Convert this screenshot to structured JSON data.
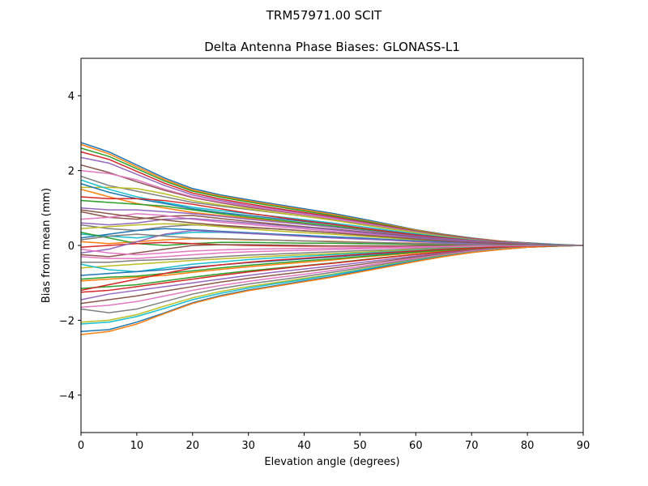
{
  "chart_data": {
    "type": "line",
    "suptitle": "TRM57971.00     SCIT",
    "title": "Delta Antenna Phase Biases: GLONASS-L1",
    "xlabel": "Elevation angle (degrees)",
    "ylabel": "Bias from mean (mm)",
    "xlim": [
      0,
      90
    ],
    "ylim": [
      -5,
      5
    ],
    "xticks": [
      0,
      10,
      20,
      30,
      40,
      50,
      60,
      70,
      80,
      90
    ],
    "yticks": [
      -4,
      -2,
      0,
      2,
      4
    ],
    "ytick_labels": [
      "−4",
      "−2",
      "0",
      "2",
      "4"
    ],
    "grid": false,
    "x": [
      0,
      5,
      10,
      15,
      20,
      25,
      30,
      35,
      40,
      45,
      50,
      55,
      60,
      65,
      70,
      75,
      80,
      85,
      90
    ],
    "palette": [
      "#1f77b4",
      "#ff7f0e",
      "#2ca02c",
      "#d62728",
      "#9467bd",
      "#8c564b",
      "#e377c2",
      "#7f7f7f",
      "#bcbd22",
      "#17becf"
    ],
    "series": [
      {
        "values": [
          2.75,
          2.5,
          2.15,
          1.8,
          1.52,
          1.35,
          1.22,
          1.1,
          0.98,
          0.86,
          0.72,
          0.57,
          0.42,
          0.3,
          0.2,
          0.12,
          0.07,
          0.03,
          0.0
        ]
      },
      {
        "values": [
          2.7,
          2.45,
          2.1,
          1.76,
          1.48,
          1.32,
          1.19,
          1.07,
          0.95,
          0.83,
          0.69,
          0.55,
          0.41,
          0.29,
          0.19,
          0.12,
          0.06,
          0.02,
          0.0
        ]
      },
      {
        "values": [
          2.6,
          2.38,
          2.05,
          1.72,
          1.45,
          1.29,
          1.16,
          1.04,
          0.92,
          0.8,
          0.67,
          0.53,
          0.39,
          0.28,
          0.18,
          0.11,
          0.06,
          0.02,
          0.0
        ]
      },
      {
        "values": [
          2.5,
          2.3,
          1.98,
          1.66,
          1.4,
          1.24,
          1.11,
          0.99,
          0.88,
          0.77,
          0.64,
          0.51,
          0.38,
          0.27,
          0.18,
          0.11,
          0.06,
          0.02,
          0.0
        ]
      },
      {
        "values": [
          2.35,
          2.2,
          1.9,
          1.6,
          1.35,
          1.2,
          1.07,
          0.96,
          0.85,
          0.74,
          0.62,
          0.49,
          0.37,
          0.26,
          0.17,
          0.1,
          0.05,
          0.02,
          0.0
        ]
      },
      {
        "values": [
          2.15,
          1.95,
          1.7,
          1.47,
          1.28,
          1.14,
          1.02,
          0.92,
          0.82,
          0.71,
          0.6,
          0.48,
          0.36,
          0.25,
          0.16,
          0.1,
          0.05,
          0.02,
          0.0
        ]
      },
      {
        "values": [
          2.0,
          1.92,
          1.75,
          1.5,
          1.3,
          1.16,
          1.05,
          0.94,
          0.83,
          0.72,
          0.6,
          0.48,
          0.36,
          0.25,
          0.16,
          0.1,
          0.05,
          0.02,
          0.0
        ]
      },
      {
        "values": [
          1.85,
          1.6,
          1.45,
          1.3,
          1.15,
          1.05,
          0.96,
          0.87,
          0.78,
          0.68,
          0.57,
          0.46,
          0.35,
          0.25,
          0.16,
          0.1,
          0.05,
          0.02,
          0.0
        ]
      },
      {
        "values": [
          1.55,
          1.55,
          1.52,
          1.38,
          1.2,
          1.08,
          0.98,
          0.88,
          0.78,
          0.68,
          0.56,
          0.45,
          0.34,
          0.24,
          0.15,
          0.09,
          0.05,
          0.02,
          0.0
        ]
      },
      {
        "values": [
          1.75,
          1.5,
          1.3,
          1.15,
          1.02,
          0.93,
          0.85,
          0.77,
          0.69,
          0.6,
          0.51,
          0.41,
          0.31,
          0.22,
          0.14,
          0.09,
          0.05,
          0.02,
          0.0
        ]
      },
      {
        "values": [
          1.65,
          1.42,
          1.25,
          1.12,
          0.98,
          0.88,
          0.8,
          0.72,
          0.64,
          0.56,
          0.47,
          0.38,
          0.29,
          0.21,
          0.13,
          0.08,
          0.04,
          0.02,
          0.0
        ]
      },
      {
        "values": [
          1.5,
          1.3,
          1.12,
          1.0,
          0.88,
          0.8,
          0.73,
          0.66,
          0.59,
          0.52,
          0.44,
          0.36,
          0.27,
          0.19,
          0.12,
          0.07,
          0.04,
          0.01,
          0.0
        ]
      },
      {
        "values": [
          1.2,
          1.15,
          1.1,
          1.05,
          0.95,
          0.85,
          0.76,
          0.68,
          0.6,
          0.52,
          0.44,
          0.35,
          0.27,
          0.19,
          0.12,
          0.07,
          0.04,
          0.01,
          0.0
        ]
      },
      {
        "values": [
          1.3,
          1.25,
          1.25,
          1.2,
          1.1,
          0.98,
          0.86,
          0.76,
          0.66,
          0.57,
          0.47,
          0.37,
          0.28,
          0.2,
          0.13,
          0.08,
          0.04,
          0.01,
          0.0
        ]
      },
      {
        "values": [
          1.0,
          0.95,
          0.95,
          0.9,
          0.85,
          0.78,
          0.7,
          0.63,
          0.56,
          0.49,
          0.41,
          0.33,
          0.25,
          0.18,
          0.12,
          0.07,
          0.04,
          0.01,
          0.0
        ]
      },
      {
        "values": [
          0.9,
          0.75,
          0.7,
          0.78,
          0.8,
          0.72,
          0.64,
          0.57,
          0.5,
          0.44,
          0.37,
          0.3,
          0.23,
          0.16,
          0.1,
          0.06,
          0.03,
          0.01,
          0.0
        ]
      },
      {
        "values": [
          0.7,
          0.75,
          0.85,
          0.8,
          0.7,
          0.62,
          0.56,
          0.5,
          0.44,
          0.38,
          0.32,
          0.26,
          0.2,
          0.14,
          0.09,
          0.05,
          0.03,
          0.01,
          0.0
        ]
      },
      {
        "values": [
          0.55,
          0.45,
          0.4,
          0.5,
          0.55,
          0.52,
          0.48,
          0.44,
          0.39,
          0.34,
          0.29,
          0.23,
          0.18,
          0.13,
          0.08,
          0.05,
          0.03,
          0.01,
          0.0
        ]
      },
      {
        "values": [
          0.45,
          0.5,
          0.55,
          0.58,
          0.56,
          0.5,
          0.44,
          0.39,
          0.34,
          0.3,
          0.25,
          0.2,
          0.15,
          0.11,
          0.07,
          0.04,
          0.02,
          0.01,
          0.0
        ]
      },
      {
        "values": [
          0.3,
          0.25,
          0.2,
          0.28,
          0.35,
          0.35,
          0.32,
          0.29,
          0.26,
          0.23,
          0.19,
          0.16,
          0.12,
          0.09,
          0.06,
          0.03,
          0.02,
          0.01,
          0.0
        ]
      },
      {
        "values": [
          0.2,
          0.3,
          0.4,
          0.45,
          0.42,
          0.38,
          0.34,
          0.3,
          0.27,
          0.23,
          0.2,
          0.16,
          0.12,
          0.09,
          0.06,
          0.03,
          0.02,
          0.01,
          0.0
        ]
      },
      {
        "values": [
          0.1,
          0.05,
          0.1,
          0.15,
          0.18,
          0.17,
          0.15,
          0.14,
          0.12,
          0.11,
          0.09,
          0.07,
          0.06,
          0.04,
          0.03,
          0.02,
          0.01,
          0.0,
          0.0
        ]
      },
      {
        "values": [
          0.35,
          0.2,
          0.05,
          0.0,
          0.05,
          0.08,
          0.08,
          0.07,
          0.06,
          0.06,
          0.05,
          0.04,
          0.03,
          0.02,
          0.01,
          0.01,
          0.0,
          0.0,
          0.0
        ]
      },
      {
        "values": [
          -0.05,
          0.0,
          0.05,
          0.08,
          0.05,
          0.02,
          0.0,
          -0.01,
          -0.02,
          -0.02,
          -0.02,
          -0.02,
          -0.01,
          -0.01,
          -0.01,
          0.0,
          0.0,
          0.0,
          0.0
        ]
      },
      {
        "values": [
          -0.2,
          -0.1,
          0.1,
          0.3,
          0.4,
          0.36,
          0.32,
          0.28,
          0.24,
          0.2,
          0.17,
          0.14,
          0.1,
          0.07,
          0.05,
          0.03,
          0.01,
          0.0,
          0.0
        ]
      },
      {
        "values": [
          -0.25,
          -0.3,
          -0.2,
          -0.1,
          0.0,
          0.02,
          0.02,
          0.01,
          0.0,
          -0.01,
          -0.01,
          -0.01,
          -0.01,
          -0.01,
          0.0,
          0.0,
          0.0,
          0.0,
          0.0
        ]
      },
      {
        "values": [
          -0.3,
          -0.35,
          -0.35,
          -0.3,
          -0.25,
          -0.2,
          -0.17,
          -0.15,
          -0.13,
          -0.11,
          -0.09,
          -0.07,
          -0.06,
          -0.04,
          -0.03,
          -0.02,
          -0.01,
          0.0,
          0.0
        ]
      },
      {
        "values": [
          -0.45,
          -0.45,
          -0.4,
          -0.38,
          -0.35,
          -0.3,
          -0.26,
          -0.23,
          -0.2,
          -0.17,
          -0.14,
          -0.12,
          -0.09,
          -0.06,
          -0.04,
          -0.02,
          -0.01,
          0.0,
          0.0
        ]
      },
      {
        "values": [
          -0.6,
          -0.55,
          -0.5,
          -0.45,
          -0.4,
          -0.36,
          -0.32,
          -0.28,
          -0.25,
          -0.22,
          -0.18,
          -0.15,
          -0.11,
          -0.08,
          -0.05,
          -0.03,
          -0.02,
          -0.01,
          0.0
        ]
      },
      {
        "values": [
          -0.5,
          -0.65,
          -0.7,
          -0.6,
          -0.5,
          -0.44,
          -0.38,
          -0.33,
          -0.29,
          -0.25,
          -0.21,
          -0.17,
          -0.13,
          -0.09,
          -0.06,
          -0.04,
          -0.02,
          -0.01,
          0.0
        ]
      },
      {
        "values": [
          -0.8,
          -0.75,
          -0.7,
          -0.65,
          -0.58,
          -0.52,
          -0.46,
          -0.41,
          -0.36,
          -0.31,
          -0.26,
          -0.21,
          -0.16,
          -0.11,
          -0.07,
          -0.04,
          -0.02,
          -0.01,
          0.0
        ]
      },
      {
        "values": [
          -0.95,
          -0.9,
          -0.85,
          -0.8,
          -0.72,
          -0.64,
          -0.57,
          -0.51,
          -0.45,
          -0.39,
          -0.32,
          -0.26,
          -0.2,
          -0.14,
          -0.09,
          -0.05,
          -0.03,
          -0.01,
          0.0
        ]
      },
      {
        "values": [
          -1.15,
          -1.1,
          -1.05,
          -0.95,
          -0.85,
          -0.76,
          -0.68,
          -0.61,
          -0.54,
          -0.47,
          -0.39,
          -0.31,
          -0.24,
          -0.17,
          -0.11,
          -0.06,
          -0.03,
          -0.01,
          0.0
        ]
      },
      {
        "values": [
          -1.25,
          -1.2,
          -1.1,
          -1.0,
          -0.9,
          -0.8,
          -0.71,
          -0.63,
          -0.55,
          -0.48,
          -0.4,
          -0.32,
          -0.24,
          -0.17,
          -0.11,
          -0.06,
          -0.03,
          -0.01,
          0.0
        ]
      },
      {
        "values": [
          -1.45,
          -1.3,
          -1.2,
          -1.1,
          -1.0,
          -0.9,
          -0.8,
          -0.71,
          -0.63,
          -0.55,
          -0.46,
          -0.37,
          -0.28,
          -0.2,
          -0.13,
          -0.07,
          -0.04,
          -0.01,
          0.0
        ]
      },
      {
        "values": [
          -1.55,
          -1.45,
          -1.35,
          -1.22,
          -1.1,
          -0.98,
          -0.88,
          -0.79,
          -0.7,
          -0.61,
          -0.51,
          -0.41,
          -0.31,
          -0.22,
          -0.14,
          -0.08,
          -0.04,
          -0.01,
          0.0
        ]
      },
      {
        "values": [
          -1.65,
          -1.6,
          -1.5,
          -1.35,
          -1.2,
          -1.07,
          -0.96,
          -0.86,
          -0.77,
          -0.67,
          -0.56,
          -0.45,
          -0.34,
          -0.24,
          -0.15,
          -0.09,
          -0.04,
          -0.01,
          0.0
        ]
      },
      {
        "values": [
          -1.7,
          -1.8,
          -1.7,
          -1.5,
          -1.3,
          -1.15,
          -1.03,
          -0.93,
          -0.83,
          -0.72,
          -0.6,
          -0.48,
          -0.37,
          -0.26,
          -0.17,
          -0.1,
          -0.05,
          -0.02,
          0.0
        ]
      },
      {
        "values": [
          -2.05,
          -2.0,
          -1.85,
          -1.62,
          -1.4,
          -1.23,
          -1.1,
          -0.99,
          -0.88,
          -0.77,
          -0.64,
          -0.51,
          -0.39,
          -0.27,
          -0.18,
          -0.1,
          -0.05,
          -0.02,
          0.0
        ]
      },
      {
        "values": [
          -2.1,
          -2.05,
          -1.9,
          -1.68,
          -1.45,
          -1.28,
          -1.14,
          -1.02,
          -0.91,
          -0.79,
          -0.66,
          -0.53,
          -0.4,
          -0.28,
          -0.18,
          -0.1,
          -0.05,
          -0.02,
          0.0
        ]
      },
      {
        "values": [
          -2.3,
          -2.25,
          -2.05,
          -1.8,
          -1.53,
          -1.34,
          -1.19,
          -1.07,
          -0.95,
          -0.83,
          -0.69,
          -0.55,
          -0.42,
          -0.29,
          -0.19,
          -0.11,
          -0.05,
          -0.02,
          0.0
        ]
      },
      {
        "values": [
          -2.38,
          -2.3,
          -2.1,
          -1.82,
          -1.55,
          -1.36,
          -1.21,
          -1.09,
          -0.97,
          -0.85,
          -0.71,
          -0.57,
          -0.43,
          -0.3,
          -0.19,
          -0.11,
          -0.05,
          -0.02,
          0.0
        ]
      },
      {
        "values": [
          -0.9,
          -0.85,
          -0.82,
          -0.75,
          -0.68,
          -0.6,
          -0.53,
          -0.47,
          -0.41,
          -0.36,
          -0.3,
          -0.24,
          -0.18,
          -0.13,
          -0.08,
          -0.05,
          -0.02,
          -0.01,
          0.0
        ]
      },
      {
        "values": [
          -1.2,
          -1.05,
          -0.9,
          -0.75,
          -0.6,
          -0.52,
          -0.45,
          -0.39,
          -0.34,
          -0.29,
          -0.24,
          -0.19,
          -0.15,
          -0.1,
          -0.07,
          -0.04,
          -0.02,
          -0.01,
          0.0
        ]
      },
      {
        "values": [
          0.6,
          0.55,
          0.6,
          0.7,
          0.72,
          0.66,
          0.6,
          0.54,
          0.48,
          0.42,
          0.35,
          0.28,
          0.21,
          0.15,
          0.1,
          0.06,
          0.03,
          0.01,
          0.0
        ]
      },
      {
        "values": [
          0.95,
          0.85,
          0.75,
          0.68,
          0.6,
          0.54,
          0.49,
          0.44,
          0.39,
          0.34,
          0.28,
          0.23,
          0.17,
          0.12,
          0.08,
          0.05,
          0.02,
          0.01,
          0.0
        ]
      },
      {
        "values": [
          -0.1,
          -0.2,
          -0.25,
          -0.2,
          -0.15,
          -0.12,
          -0.1,
          -0.09,
          -0.08,
          -0.07,
          -0.06,
          -0.05,
          -0.04,
          -0.03,
          -0.02,
          -0.01,
          -0.01,
          0.0,
          0.0
        ]
      },
      {
        "values": [
          0.15,
          0.25,
          0.3,
          0.25,
          0.2,
          0.18,
          0.16,
          0.14,
          0.12,
          0.1,
          0.08,
          0.07,
          0.05,
          0.04,
          0.02,
          0.01,
          0.01,
          0.0,
          0.0
        ]
      }
    ]
  }
}
